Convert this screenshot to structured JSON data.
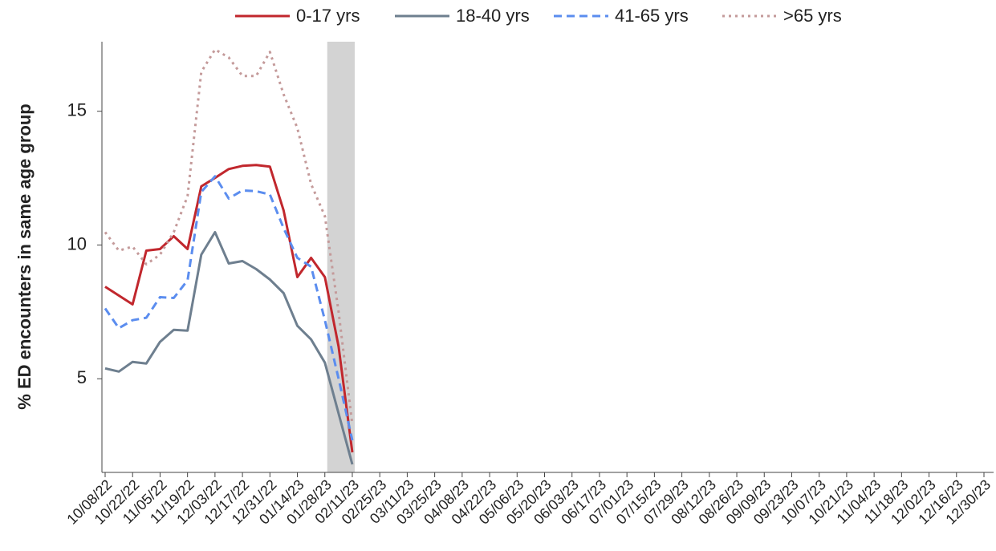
{
  "chart_data": {
    "type": "line",
    "y_label": "% ED encounters in same age group",
    "categories": [
      "10/08/22",
      null,
      "10/22/22",
      null,
      "11/05/22",
      null,
      "11/19/22",
      null,
      "12/03/22",
      null,
      "12/17/22",
      null,
      "12/31/22",
      null,
      "01/14/23",
      null,
      "01/28/23",
      null,
      "02/11/23",
      null,
      "02/25/23",
      null,
      "03/11/23",
      null,
      "03/25/23",
      null,
      "04/08/23",
      null,
      "04/22/23",
      null,
      "05/06/23",
      null,
      "05/20/23",
      null,
      "06/03/23",
      null,
      "06/17/23",
      null,
      "07/01/23",
      null,
      "07/15/23",
      null,
      "07/29/23",
      null,
      "08/12/23",
      null,
      "08/26/23",
      null,
      "09/09/23",
      null,
      "09/23/23",
      null,
      "10/07/23",
      null,
      "10/21/23",
      null,
      "11/04/23",
      null,
      "11/18/23",
      null,
      "12/02/23",
      null,
      "12/16/23",
      null,
      "12/30/23"
    ],
    "shaded_range": [
      "01/28/23",
      "02/11/23"
    ],
    "shade_color": "#d3d3d3",
    "series": [
      {
        "name": "0-17 yrs",
        "color": "#c1272d",
        "style": "solid",
        "values": [
          8.44,
          8.11,
          7.78,
          9.79,
          9.85,
          10.33,
          9.85,
          12.19,
          12.51,
          12.84,
          12.96,
          12.99,
          12.93,
          11.29,
          8.8,
          9.52,
          8.8,
          6.2,
          2.25,
          null,
          null,
          null,
          null,
          null,
          null,
          null,
          null,
          null,
          null,
          null,
          null,
          null,
          null,
          null,
          null,
          null,
          null,
          null,
          null,
          null,
          null,
          null,
          null,
          null,
          null,
          null,
          null,
          null,
          null,
          null,
          null,
          null,
          null,
          null,
          null,
          null,
          null,
          null,
          null,
          null,
          null,
          null,
          null,
          null,
          null
        ]
      },
      {
        "name": "18-40 yrs",
        "color": "#6e7f8f",
        "style": "solid",
        "values": [
          5.39,
          5.27,
          5.63,
          5.57,
          6.38,
          6.83,
          6.8,
          9.64,
          10.48,
          9.31,
          9.4,
          9.1,
          8.71,
          8.2,
          6.98,
          6.47,
          5.6,
          3.7,
          1.8,
          null,
          null,
          null,
          null,
          null,
          null,
          null,
          null,
          null,
          null,
          null,
          null,
          null,
          null,
          null,
          null,
          null,
          null,
          null,
          null,
          null,
          null,
          null,
          null,
          null,
          null,
          null,
          null,
          null,
          null,
          null,
          null,
          null,
          null,
          null,
          null,
          null,
          null,
          null,
          null,
          null,
          null,
          null,
          null,
          null,
          null
        ]
      },
      {
        "name": "41-65 yrs",
        "color": "#5b8def",
        "style": "dashed",
        "values": [
          7.63,
          6.89,
          7.19,
          7.28,
          8.05,
          8.02,
          8.68,
          11.98,
          12.57,
          11.74,
          12.04,
          12.01,
          11.89,
          10.63,
          9.52,
          9.19,
          7.19,
          5.0,
          2.7,
          null,
          null,
          null,
          null,
          null,
          null,
          null,
          null,
          null,
          null,
          null,
          null,
          null,
          null,
          null,
          null,
          null,
          null,
          null,
          null,
          null,
          null,
          null,
          null,
          null,
          null,
          null,
          null,
          null,
          null,
          null,
          null,
          null,
          null,
          null,
          null,
          null,
          null,
          null,
          null,
          null,
          null,
          null,
          null,
          null,
          null
        ]
      },
      {
        "name": ">65 yrs",
        "color": "#c49a9a",
        "style": "dotted",
        "values": [
          10.48,
          9.79,
          9.94,
          9.28,
          9.64,
          10.48,
          11.83,
          16.47,
          17.31,
          17.01,
          16.32,
          16.32,
          17.22,
          15.63,
          14.37,
          12.28,
          11.08,
          7.5,
          3.29,
          null,
          null,
          null,
          null,
          null,
          null,
          null,
          null,
          null,
          null,
          null,
          null,
          null,
          null,
          null,
          null,
          null,
          null,
          null,
          null,
          null,
          null,
          null,
          null,
          null,
          null,
          null,
          null,
          null,
          null,
          null,
          null,
          null,
          null,
          null,
          null,
          null,
          null,
          null,
          null,
          null,
          null,
          null,
          null,
          null,
          null
        ]
      }
    ],
    "ylim": [
      1.5,
      17.6
    ],
    "yticks": [
      5,
      10,
      15
    ],
    "legend": "top"
  }
}
